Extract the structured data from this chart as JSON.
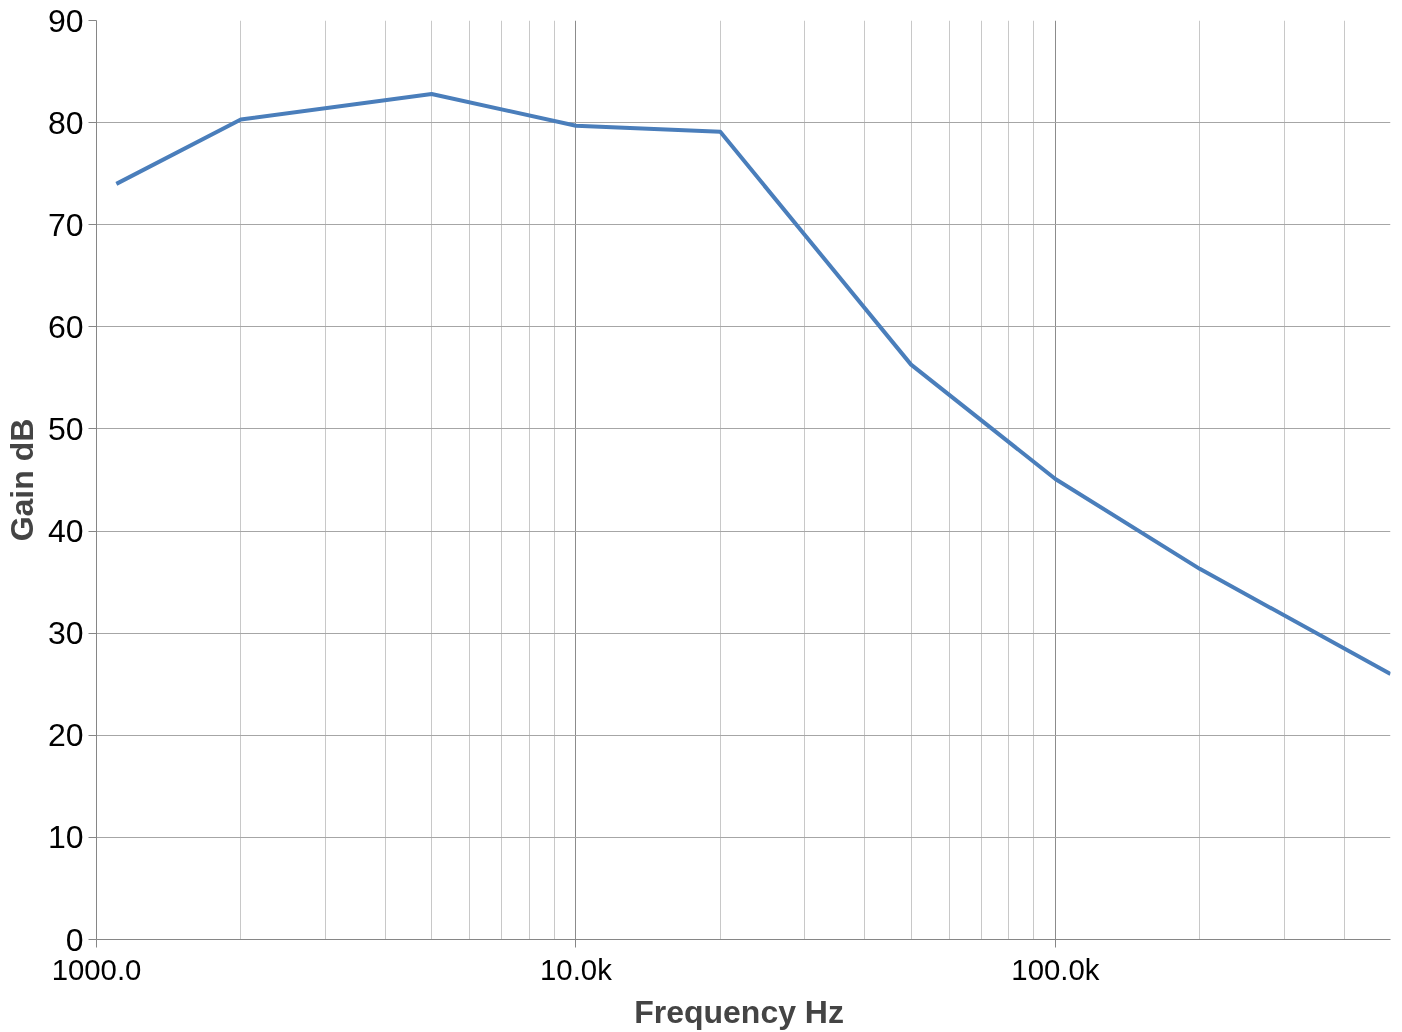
{
  "chart_data": {
    "type": "line",
    "xlabel": "Frequency  Hz",
    "ylabel": "Gain dB",
    "x": [
      1100,
      2000,
      5000,
      10000,
      20000,
      50000,
      100000,
      200000,
      500000
    ],
    "series": [
      {
        "color": "#4a7ebb",
        "values": [
          74,
          80.3,
          82.8,
          79.7,
          79.1,
          56.3,
          45.1,
          36.3,
          26.0
        ]
      }
    ],
    "log": "x",
    "xlim": [
      1000,
      500000
    ],
    "ylim": [
      0,
      90
    ],
    "xticks": [
      {
        "value": 1000,
        "label": "1000.0"
      },
      {
        "value": 10000,
        "label": "10.0k"
      },
      {
        "value": 100000,
        "label": "100.0k"
      }
    ],
    "yticks": [
      0,
      10,
      20,
      30,
      40,
      50,
      60,
      70,
      80,
      90
    ],
    "grid": true,
    "marker": "none",
    "line_style": "solid"
  }
}
